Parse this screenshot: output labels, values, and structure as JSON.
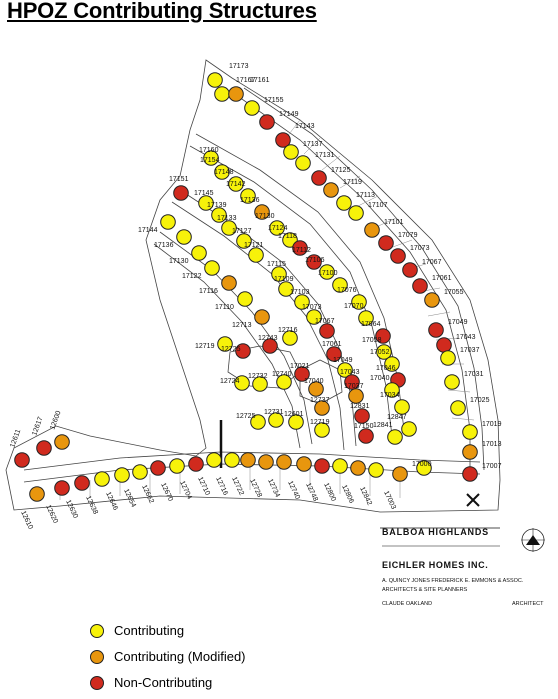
{
  "title": "HPOZ Contributing Structures",
  "colors": {
    "contributing": "#f7f20a",
    "contributing_modified": "#e8960e",
    "non_contributing": "#d02a1e"
  },
  "legend": [
    {
      "status": "contributing",
      "label": "Contributing"
    },
    {
      "status": "contributing_modified",
      "label": "Contributing (Modified)"
    },
    {
      "status": "non_contributing",
      "label": "Non-Contributing"
    }
  ],
  "title_block": {
    "project": "BALBOA HIGHLANDS",
    "developer": "EICHLER HOMES INC.",
    "planners": "A. QUINCY JONES  FREDERICK E. EMMONS & ASSOC.",
    "planners_role": "ARCHITECTS & SITE PLANNERS",
    "associate": "CLAUDE OAKLAND",
    "associate_role": "ARCHITECT"
  },
  "lots": [
    {
      "label": "17173",
      "status": "contributing"
    },
    {
      "label": "17167",
      "status": "contributing"
    },
    {
      "label": "17161",
      "status": "contributing_modified"
    },
    {
      "label": "17155",
      "status": "contributing"
    },
    {
      "label": "17149",
      "status": "non_contributing"
    },
    {
      "label": "17143",
      "status": "non_contributing"
    },
    {
      "label": "17137",
      "status": "contributing"
    },
    {
      "label": "17131",
      "status": "contributing"
    },
    {
      "label": "17125",
      "status": "non_contributing"
    },
    {
      "label": "17119",
      "status": "contributing_modified"
    },
    {
      "label": "17113",
      "status": "contributing"
    },
    {
      "label": "17107",
      "status": "contributing"
    },
    {
      "label": "17101",
      "status": "contributing_modified"
    },
    {
      "label": "17079",
      "status": "non_contributing"
    },
    {
      "label": "17073",
      "status": "non_contributing"
    },
    {
      "label": "17067",
      "status": "non_contributing"
    },
    {
      "label": "17061",
      "status": "non_contributing"
    },
    {
      "label": "17055",
      "status": "contributing_modified"
    },
    {
      "label": "17049",
      "status": "non_contributing"
    },
    {
      "label": "17043",
      "status": "non_contributing"
    },
    {
      "label": "17037",
      "status": "contributing"
    },
    {
      "label": "17031",
      "status": "contributing"
    },
    {
      "label": "17025",
      "status": "contributing"
    },
    {
      "label": "17019",
      "status": "contributing"
    },
    {
      "label": "17013",
      "status": "contributing_modified"
    },
    {
      "label": "17007",
      "status": "non_contributing"
    },
    {
      "label": "17160",
      "status": "contributing"
    },
    {
      "label": "17154",
      "status": "contributing"
    },
    {
      "label": "17148",
      "status": "contributing"
    },
    {
      "label": "17142",
      "status": "contributing"
    },
    {
      "label": "17136",
      "status": "contributing_modified"
    },
    {
      "label": "17130",
      "status": "contributing"
    },
    {
      "label": "17124",
      "status": "contributing"
    },
    {
      "label": "17118",
      "status": "non_contributing"
    },
    {
      "label": "17112",
      "status": "non_contributing"
    },
    {
      "label": "17106",
      "status": "contributing"
    },
    {
      "label": "17100",
      "status": "contributing"
    },
    {
      "label": "17076",
      "status": "contributing"
    },
    {
      "label": "17070",
      "status": "contributing"
    },
    {
      "label": "17064",
      "status": "non_contributing"
    },
    {
      "label": "17058",
      "status": "contributing"
    },
    {
      "label": "17052",
      "status": "contributing"
    },
    {
      "label": "17046",
      "status": "non_contributing"
    },
    {
      "label": "17040",
      "status": "contributing"
    },
    {
      "label": "17034",
      "status": "contributing"
    },
    {
      "label": "12847",
      "status": "contributing"
    },
    {
      "label": "12841",
      "status": "contributing"
    },
    {
      "label": "17151",
      "status": "non_contributing"
    },
    {
      "label": "17145",
      "status": "contributing"
    },
    {
      "label": "17139",
      "status": "contributing"
    },
    {
      "label": "17133",
      "status": "contributing"
    },
    {
      "label": "17127",
      "status": "contributing"
    },
    {
      "label": "17121",
      "status": "contributing"
    },
    {
      "label": "17115",
      "status": "contributing"
    },
    {
      "label": "17109",
      "status": "contributing"
    },
    {
      "label": "17103",
      "status": "contributing"
    },
    {
      "label": "17073",
      "status": "contributing"
    },
    {
      "label": "17067",
      "status": "non_contributing"
    },
    {
      "label": "17061",
      "status": "non_contributing"
    },
    {
      "label": "17049",
      "status": "contributing"
    },
    {
      "label": "17043",
      "status": "non_contributing"
    },
    {
      "label": "17037",
      "status": "contributing_modified"
    },
    {
      "label": "12831",
      "status": "non_contributing"
    },
    {
      "label": "17150",
      "status": "non_contributing"
    },
    {
      "label": "17144",
      "status": "contributing"
    },
    {
      "label": "17136",
      "status": "contributing"
    },
    {
      "label": "17130",
      "status": "contributing"
    },
    {
      "label": "17122",
      "status": "contributing"
    },
    {
      "label": "17116",
      "status": "contributing_modified"
    },
    {
      "label": "17110",
      "status": "contributing"
    },
    {
      "label": "12713",
      "status": "contributing_modified"
    },
    {
      "label": "12719",
      "status": "contributing"
    },
    {
      "label": "12725",
      "status": "non_contributing"
    },
    {
      "label": "12743",
      "status": "non_contributing"
    },
    {
      "label": "12716",
      "status": "contributing"
    },
    {
      "label": "12724",
      "status": "contributing"
    },
    {
      "label": "12732",
      "status": "contributing"
    },
    {
      "label": "12740",
      "status": "contributing"
    },
    {
      "label": "17021",
      "status": "non_contributing"
    },
    {
      "label": "17040",
      "status": "contributing_modified"
    },
    {
      "label": "12737",
      "status": "contributing_modified"
    },
    {
      "label": "12719",
      "status": "contributing"
    },
    {
      "label": "12725",
      "status": "contributing"
    },
    {
      "label": "12731",
      "status": "contributing"
    },
    {
      "label": "12601",
      "status": "contributing"
    },
    {
      "label": "12611",
      "status": "non_contributing"
    },
    {
      "label": "12617",
      "status": "non_contributing"
    },
    {
      "label": "12600",
      "status": "contributing_modified"
    },
    {
      "label": "12610",
      "status": "contributing_modified"
    },
    {
      "label": "12620",
      "status": "non_contributing"
    },
    {
      "label": "12630",
      "status": "non_contributing"
    },
    {
      "label": "12638",
      "status": "contributing"
    },
    {
      "label": "12646",
      "status": "contributing"
    },
    {
      "label": "12654",
      "status": "contributing"
    },
    {
      "label": "12662",
      "status": "non_contributing"
    },
    {
      "label": "12670",
      "status": "contributing"
    },
    {
      "label": "12704",
      "status": "non_contributing"
    },
    {
      "label": "12710",
      "status": "contributing"
    },
    {
      "label": "12716",
      "status": "contributing"
    },
    {
      "label": "12722",
      "status": "contributing_modified"
    },
    {
      "label": "12728",
      "status": "contributing_modified"
    },
    {
      "label": "12734",
      "status": "contributing_modified"
    },
    {
      "label": "12740",
      "status": "contributing_modified"
    },
    {
      "label": "12748",
      "status": "non_contributing"
    },
    {
      "label": "12800",
      "status": "contributing"
    },
    {
      "label": "12806",
      "status": "contributing_modified"
    },
    {
      "label": "12842",
      "status": "contributing"
    },
    {
      "label": "17003",
      "status": "contributing_modified"
    },
    {
      "label": "17000",
      "status": "contributing"
    }
  ]
}
